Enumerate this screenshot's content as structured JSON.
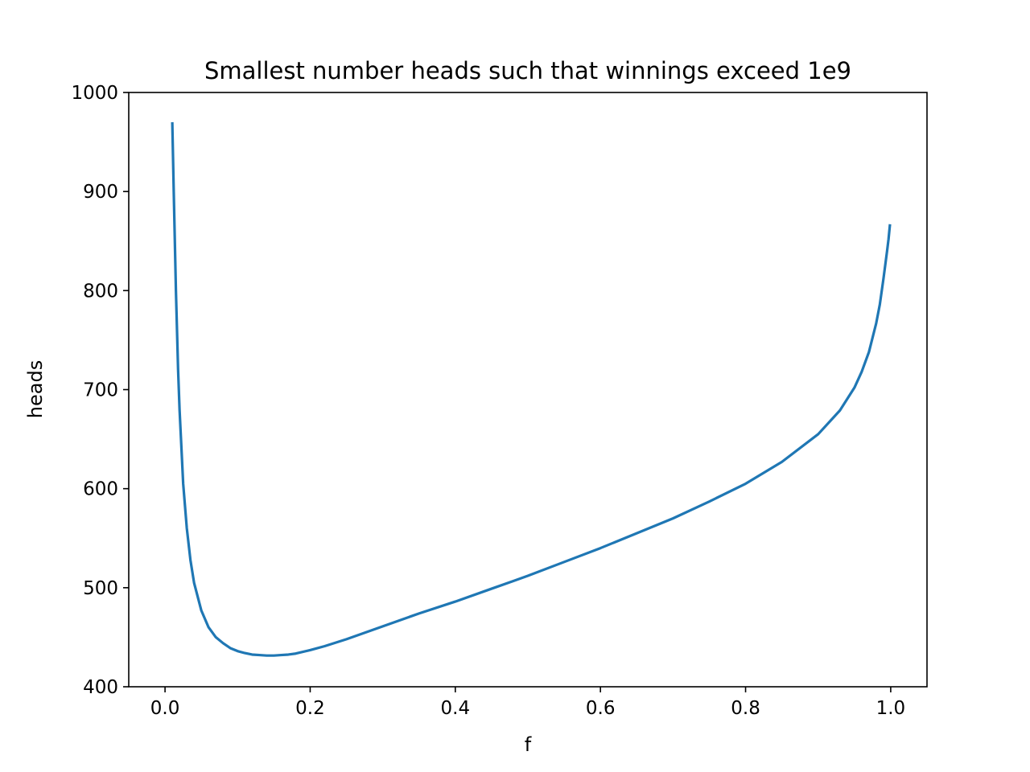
{
  "chart_data": {
    "type": "line",
    "title": "Smallest number heads such that winnings exceed 1e9",
    "xlabel": "f",
    "ylabel": "heads",
    "xlim": [
      -0.05,
      1.05
    ],
    "ylim": [
      400,
      1000
    ],
    "xticks": [
      0.0,
      0.2,
      0.4,
      0.6,
      0.8,
      1.0
    ],
    "xtick_labels": [
      "0.0",
      "0.2",
      "0.4",
      "0.6",
      "0.8",
      "1.0"
    ],
    "yticks": [
      400,
      500,
      600,
      700,
      800,
      900,
      1000
    ],
    "ytick_labels": [
      "400",
      "500",
      "600",
      "700",
      "800",
      "900",
      "1000"
    ],
    "grid": false,
    "series": [
      {
        "color": "#1f77b4",
        "x": [
          0.01,
          0.012,
          0.015,
          0.018,
          0.02,
          0.025,
          0.03,
          0.035,
          0.04,
          0.05,
          0.06,
          0.07,
          0.08,
          0.09,
          0.1,
          0.11,
          0.12,
          0.13,
          0.14,
          0.15,
          0.16,
          0.17,
          0.18,
          0.2,
          0.22,
          0.25,
          0.3,
          0.35,
          0.4,
          0.45,
          0.5,
          0.55,
          0.6,
          0.65,
          0.7,
          0.75,
          0.8,
          0.85,
          0.9,
          0.93,
          0.95,
          0.96,
          0.97,
          0.98,
          0.985,
          0.99,
          0.995,
          0.997,
          0.999
        ],
        "y": [
          970,
          900,
          800,
          720,
          680,
          605,
          560,
          528,
          505,
          477,
          460,
          450,
          444,
          439,
          436,
          434,
          432.5,
          432,
          431.5,
          431.5,
          432,
          432.5,
          433.5,
          437,
          441,
          448,
          461,
          474,
          486,
          499,
          512,
          526,
          540,
          555,
          570,
          587,
          605,
          627,
          655,
          679,
          702,
          718,
          738,
          767,
          786,
          812,
          840,
          852,
          867
        ]
      }
    ]
  }
}
